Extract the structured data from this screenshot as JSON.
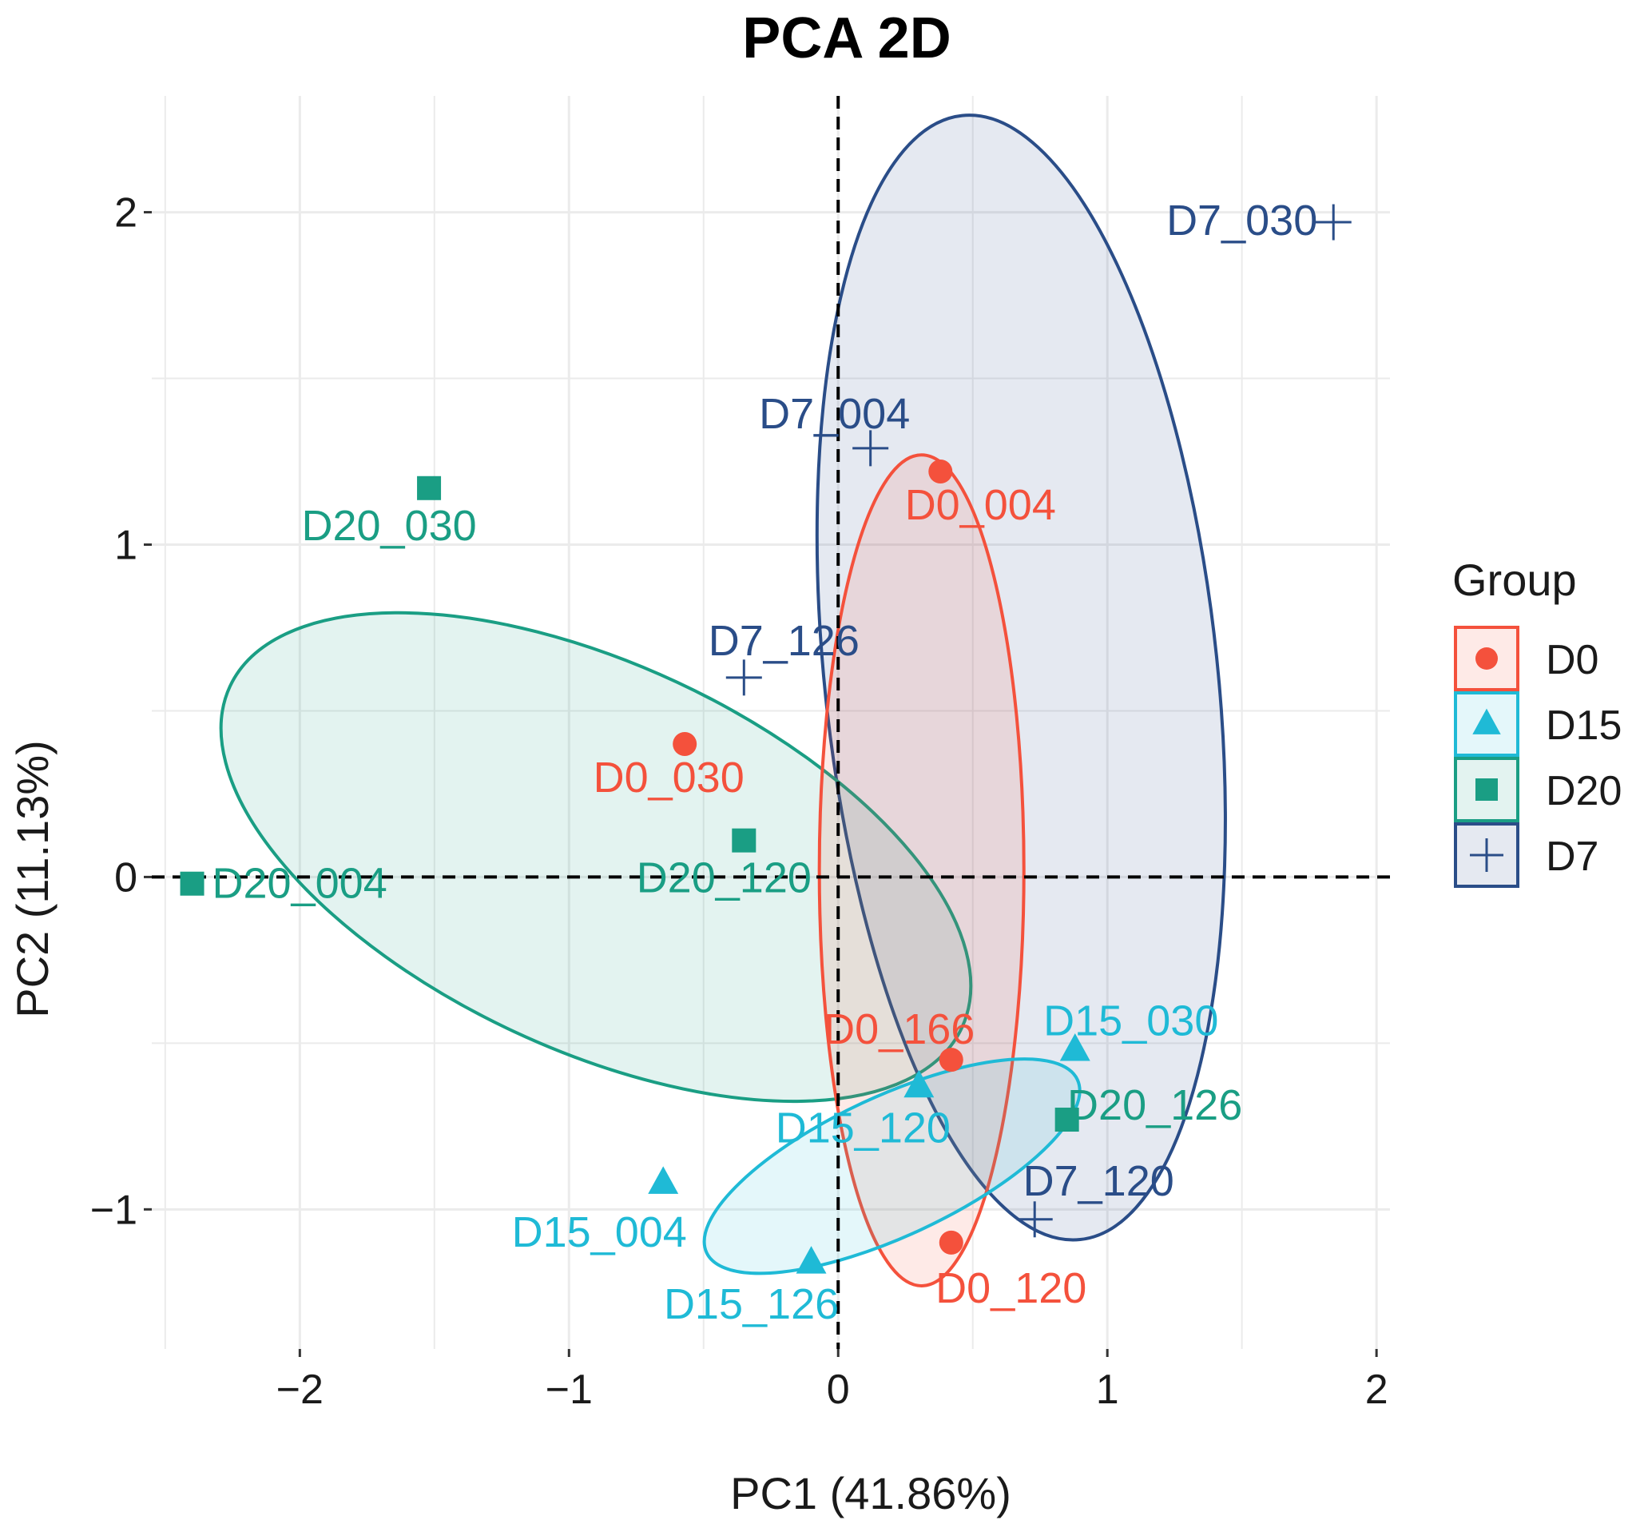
{
  "chart_data": {
    "type": "scatter",
    "title": "PCA 2D",
    "xlabel": "PC1 (41.86%)",
    "ylabel": "PC2 (11.13%)",
    "xlim": [
      -2.55,
      2.05
    ],
    "ylim": [
      -1.42,
      2.35
    ],
    "x_ticks": [
      -2,
      -1,
      0,
      1,
      2
    ],
    "x_tick_labels": [
      "−2",
      "−1",
      "0",
      "1",
      "2"
    ],
    "y_ticks": [
      -1,
      0,
      1,
      2
    ],
    "y_tick_labels": [
      "−1",
      "0",
      "1",
      "2"
    ],
    "grid": true,
    "reference_lines": {
      "x": 0,
      "y": 0,
      "style": "dashed"
    },
    "legend": {
      "title": "Group",
      "position": "right",
      "entries": [
        {
          "group": "D0",
          "label": "D0"
        },
        {
          "group": "D15",
          "label": "D15"
        },
        {
          "group": "D20",
          "label": "D20"
        },
        {
          "group": "D7",
          "label": "D7"
        }
      ]
    },
    "groups": {
      "D0": {
        "color": "#F4513C",
        "shape": "circle"
      },
      "D15": {
        "color": "#1FBAD6",
        "shape": "triangle"
      },
      "D20": {
        "color": "#1A9E84",
        "shape": "square"
      },
      "D7": {
        "color": "#2A4D88",
        "shape": "cross"
      }
    },
    "points": [
      {
        "label": "D0_004",
        "group": "D0",
        "x": 0.38,
        "y": 1.22
      },
      {
        "label": "D0_030",
        "group": "D0",
        "x": -0.57,
        "y": 0.4
      },
      {
        "label": "D0_166",
        "group": "D0",
        "x": 0.42,
        "y": -0.55
      },
      {
        "label": "D0_120",
        "group": "D0",
        "x": 0.42,
        "y": -1.1
      },
      {
        "label": "D15_030",
        "group": "D15",
        "x": 0.88,
        "y": -0.52
      },
      {
        "label": "D15_120",
        "group": "D15",
        "x": 0.3,
        "y": -0.63
      },
      {
        "label": "D15_004",
        "group": "D15",
        "x": -0.65,
        "y": -0.92
      },
      {
        "label": "D15_126",
        "group": "D15",
        "x": -0.1,
        "y": -1.16
      },
      {
        "label": "D20_030",
        "group": "D20",
        "x": -1.52,
        "y": 1.17
      },
      {
        "label": "D20_120",
        "group": "D20",
        "x": -0.35,
        "y": 0.11
      },
      {
        "label": "D20_004",
        "group": "D20",
        "x": -2.4,
        "y": -0.02
      },
      {
        "label": "D20_126",
        "group": "D20",
        "x": 0.85,
        "y": -0.73
      },
      {
        "label": "D7_030",
        "group": "D7",
        "x": 1.84,
        "y": 1.97
      },
      {
        "label": "D7_004",
        "group": "D7",
        "x": 0.12,
        "y": 1.29
      },
      {
        "label": "D7_126",
        "group": "D7",
        "x": -0.35,
        "y": 0.6
      },
      {
        "label": "D7_120",
        "group": "D7",
        "x": 0.73,
        "y": -1.03
      }
    ],
    "ellipses": [
      {
        "group": "D7",
        "cx": 0.68,
        "cy": 0.6,
        "rx": 0.73,
        "ry": 1.7,
        "angle_deg": 6
      },
      {
        "group": "D20",
        "cx": -0.9,
        "cy": 0.06,
        "rx": 1.5,
        "ry": 0.58,
        "angle_deg": -25
      },
      {
        "group": "D0",
        "cx": 0.31,
        "cy": 0.02,
        "rx": 0.38,
        "ry": 1.25,
        "angle_deg": 0
      },
      {
        "group": "D15",
        "cx": 0.2,
        "cy": -0.87,
        "rx": 0.76,
        "ry": 0.21,
        "angle_deg": 25
      }
    ]
  }
}
